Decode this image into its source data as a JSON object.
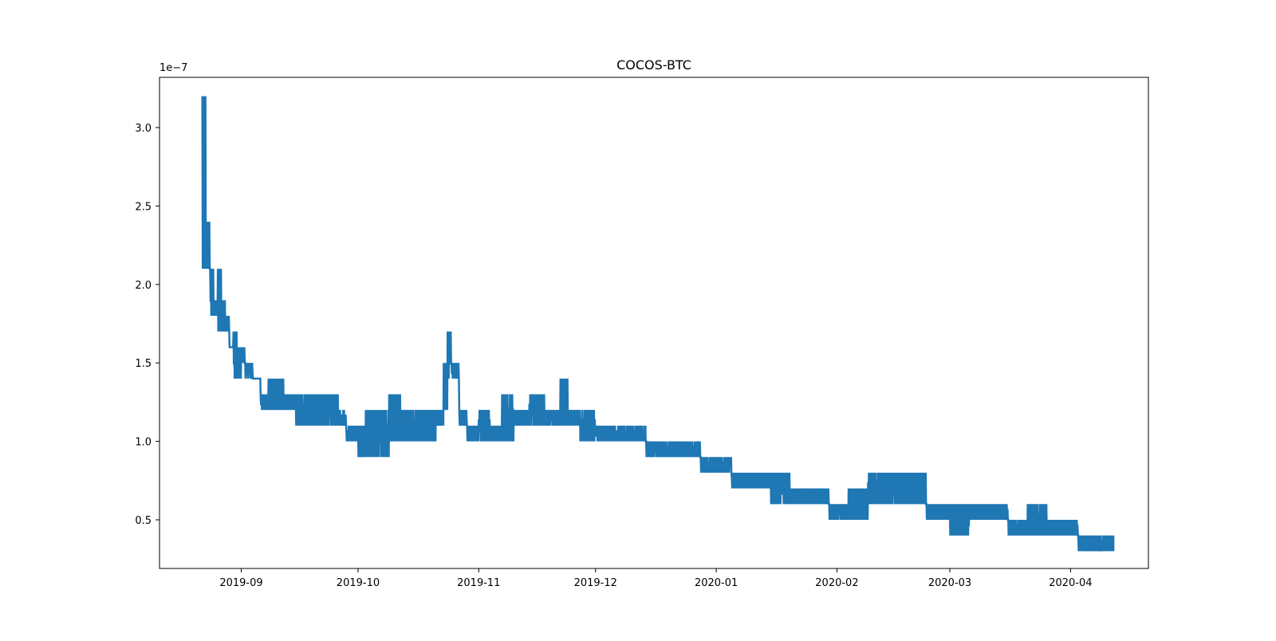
{
  "chart_data": {
    "type": "line",
    "title": "COCOS-BTC",
    "xlabel": "",
    "ylabel": "",
    "y_offset_label": "1e−7",
    "y_scale_exponent": -7,
    "line_color": "#1f77b4",
    "xlim": [
      "2019-08-11",
      "2020-04-21"
    ],
    "ylim": [
      0.19,
      3.32
    ],
    "x_ticks": [
      {
        "date": "2019-09-01",
        "label": "2019-09"
      },
      {
        "date": "2019-10-01",
        "label": "2019-10"
      },
      {
        "date": "2019-11-01",
        "label": "2019-11"
      },
      {
        "date": "2019-12-01",
        "label": "2019-12"
      },
      {
        "date": "2020-01-01",
        "label": "2020-01"
      },
      {
        "date": "2020-02-01",
        "label": "2020-02"
      },
      {
        "date": "2020-03-01",
        "label": "2020-03"
      },
      {
        "date": "2020-04-01",
        "label": "2020-04"
      }
    ],
    "y_ticks": [
      {
        "value": 0.5,
        "label": "0.5"
      },
      {
        "value": 1.0,
        "label": "1.0"
      },
      {
        "value": 1.5,
        "label": "1.5"
      },
      {
        "value": 2.0,
        "label": "2.0"
      },
      {
        "value": 2.5,
        "label": "2.5"
      },
      {
        "value": 3.0,
        "label": "3.0"
      }
    ],
    "grid": false,
    "legend": "none",
    "series": [
      {
        "x": [
          "2019-08-22",
          "2019-08-23",
          "2019-08-24",
          "2019-08-25",
          "2019-08-26",
          "2019-08-27",
          "2019-08-28",
          "2019-08-29",
          "2019-08-30",
          "2019-08-31",
          "2019-09-01",
          "2019-09-02",
          "2019-09-04",
          "2019-09-06",
          "2019-09-08",
          "2019-09-10",
          "2019-09-12",
          "2019-09-15",
          "2019-09-18",
          "2019-09-21",
          "2019-09-24",
          "2019-09-26",
          "2019-09-28",
          "2019-10-01",
          "2019-10-03",
          "2019-10-06",
          "2019-10-09",
          "2019-10-12",
          "2019-10-15",
          "2019-10-18",
          "2019-10-21",
          "2019-10-23",
          "2019-10-24",
          "2019-10-25",
          "2019-10-27",
          "2019-10-29",
          "2019-11-01",
          "2019-11-04",
          "2019-11-07",
          "2019-11-10",
          "2019-11-14",
          "2019-11-18",
          "2019-11-22",
          "2019-11-24",
          "2019-11-27",
          "2019-12-01",
          "2019-12-05",
          "2019-12-10",
          "2019-12-14",
          "2019-12-18",
          "2019-12-24",
          "2019-12-28",
          "2020-01-01",
          "2020-01-05",
          "2020-01-10",
          "2020-01-15",
          "2020-01-20",
          "2020-01-25",
          "2020-01-30",
          "2020-02-04",
          "2020-02-09",
          "2020-02-14",
          "2020-02-19",
          "2020-02-24",
          "2020-03-01",
          "2020-03-06",
          "2020-03-11",
          "2020-03-16",
          "2020-03-21",
          "2020-03-26",
          "2020-03-31",
          "2020-04-03",
          "2020-04-08",
          "2020-04-12"
        ],
        "high": [
          3.2,
          2.4,
          2.1,
          1.9,
          2.1,
          1.9,
          1.8,
          1.6,
          1.7,
          1.6,
          1.6,
          1.5,
          1.4,
          1.3,
          1.4,
          1.4,
          1.3,
          1.3,
          1.3,
          1.3,
          1.3,
          1.2,
          1.1,
          1.1,
          1.2,
          1.2,
          1.3,
          1.2,
          1.2,
          1.2,
          1.2,
          1.5,
          1.7,
          1.5,
          1.2,
          1.1,
          1.2,
          1.1,
          1.3,
          1.2,
          1.3,
          1.2,
          1.4,
          1.2,
          1.2,
          1.1,
          1.1,
          1.1,
          1.0,
          1.0,
          1.0,
          0.9,
          0.9,
          0.8,
          0.8,
          0.8,
          0.7,
          0.7,
          0.6,
          0.7,
          0.8,
          0.8,
          0.8,
          0.6,
          0.6,
          0.6,
          0.6,
          0.5,
          0.6,
          0.5,
          0.5,
          0.4,
          0.4,
          0.4
        ],
        "low": [
          2.1,
          2.1,
          1.8,
          1.8,
          1.7,
          1.7,
          1.7,
          1.6,
          1.4,
          1.4,
          1.5,
          1.4,
          1.4,
          1.2,
          1.2,
          1.2,
          1.2,
          1.1,
          1.1,
          1.1,
          1.1,
          1.1,
          1.0,
          0.9,
          0.9,
          0.9,
          1.0,
          1.0,
          1.0,
          1.0,
          1.1,
          1.2,
          1.4,
          1.4,
          1.1,
          1.0,
          1.0,
          1.0,
          1.0,
          1.1,
          1.1,
          1.1,
          1.1,
          1.1,
          1.0,
          1.0,
          1.0,
          1.0,
          0.9,
          0.9,
          0.9,
          0.8,
          0.8,
          0.7,
          0.7,
          0.6,
          0.6,
          0.6,
          0.5,
          0.5,
          0.6,
          0.6,
          0.6,
          0.5,
          0.4,
          0.5,
          0.5,
          0.4,
          0.4,
          0.4,
          0.4,
          0.3,
          0.3,
          0.3
        ]
      }
    ]
  }
}
